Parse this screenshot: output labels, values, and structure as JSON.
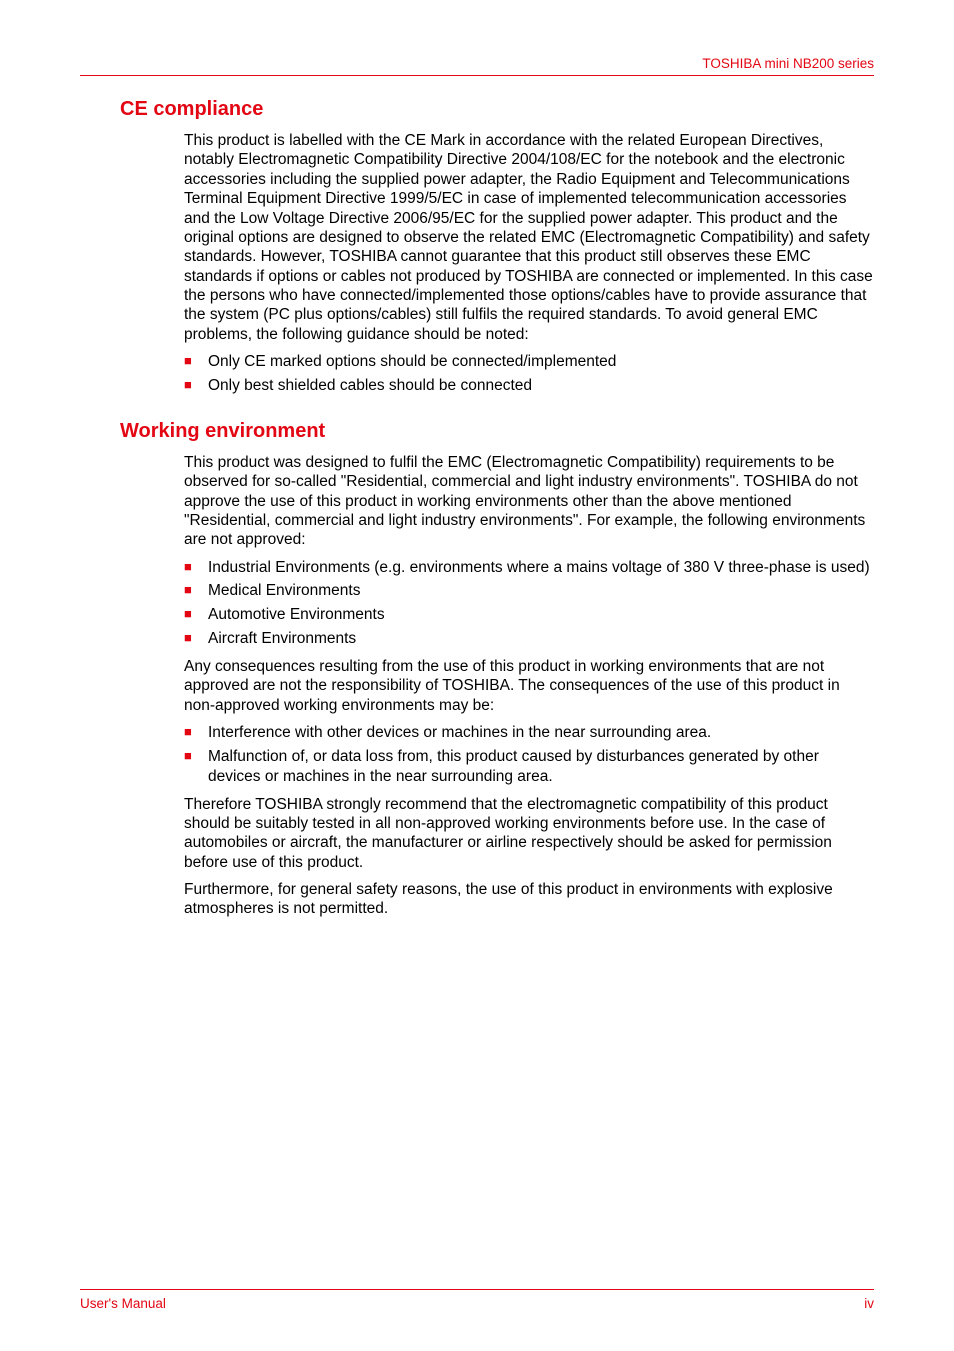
{
  "colors": {
    "accent": "#e30613",
    "text": "#000000",
    "background": "#ffffff"
  },
  "typography": {
    "body_font_size_pt": 12,
    "heading_font_size_pt": 15,
    "font_family": "Arial"
  },
  "header": {
    "product": "TOSHIBA mini NB200 series"
  },
  "sections": [
    {
      "heading": "CE compliance",
      "paragraphs": [
        "This product is labelled with the CE Mark in accordance with the related European Directives, notably Electromagnetic Compatibility Directive 2004/108/EC for the notebook and the electronic accessories including the supplied power adapter, the Radio Equipment and Telecommunications Terminal Equipment Directive 1999/5/EC in case of implemented telecommunication accessories and the Low Voltage Directive 2006/95/EC for the supplied power adapter. This product and the original options are designed to observe the related EMC (Electromagnetic Compatibility) and safety standards. However, TOSHIBA cannot guarantee that this product still observes these EMC standards if options or cables not produced by TOSHIBA are connected or implemented. In this case the persons who have connected/implemented those options/cables have to provide assurance that the system (PC plus options/cables) still fulfils the required standards. To avoid general EMC problems, the following guidance should be noted:"
      ],
      "bullets_1": [
        "Only CE marked options should be connected/implemented",
        "Only best shielded cables should be connected"
      ]
    },
    {
      "heading": "Working environment",
      "paragraphs": [
        "This product was designed to fulfil the EMC (Electromagnetic Compatibility) requirements to be observed for so-called \"Residential, commercial and light industry environments\". TOSHIBA do not approve the use of this product in working environments other than the above mentioned \"Residential, commercial and light industry environments\". For example, the following environments are not approved:"
      ],
      "bullets_1": [
        "Industrial Environments (e.g. environments where a mains voltage of 380 V three-phase is used)",
        "Medical Environments",
        "Automotive Environments",
        "Aircraft Environments"
      ],
      "paragraphs_2": [
        "Any consequences resulting from the use of this product in working environments that are not approved are not the responsibility of TOSHIBA. The consequences of the use of this product in non-approved working environments may be:"
      ],
      "bullets_2": [
        "Interference with other devices or machines in the near surrounding area.",
        "Malfunction of, or data loss from, this product caused by disturbances generated by other devices or machines in the near surrounding area."
      ],
      "paragraphs_3": [
        "Therefore TOSHIBA strongly recommend that the electromagnetic compatibility of this product should be suitably tested in all non-approved working environments before use. In the case of automobiles or aircraft, the manufacturer or airline respectively should be asked for permission before use of this product.",
        "Furthermore, for general safety reasons, the use of this product in environments with explosive atmospheres is not permitted."
      ]
    }
  ],
  "footer": {
    "left": "User's Manual",
    "right": "iv"
  }
}
